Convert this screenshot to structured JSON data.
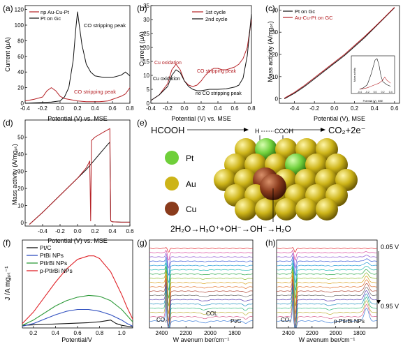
{
  "panels": {
    "a": {
      "letter": "(a)"
    },
    "b": {
      "letter": "(b)"
    },
    "c": {
      "letter": "(c)"
    },
    "d": {
      "letter": "(d)"
    },
    "e": {
      "letter": "(e)"
    },
    "f": {
      "letter": "(f)"
    },
    "g": {
      "letter": "(g)"
    },
    "h": {
      "letter": "(h)"
    }
  },
  "colors": {
    "red": "#b52025",
    "black": "#111111",
    "sphere_gold": "#cdb418",
    "pt_green": "#6fcf3a",
    "cu_brown": "#8a3b1c"
  },
  "scheme": {
    "reactant": "HCOOH",
    "product": "CO₂+2e⁻",
    "bond_h": "H",
    "bond_cooh": "COOH",
    "water_eq": "2H₂O→H₃O⁺+OH⁻→OH⁻→H₂O",
    "legend": [
      {
        "label": "Pt",
        "color": "#6fcf3a"
      },
      {
        "label": "Au",
        "color": "#cdb418"
      },
      {
        "label": "Cu",
        "color": "#8a3b1c"
      }
    ]
  },
  "chart_data": [
    {
      "panel": "a",
      "type": "line",
      "xlabel": "Potential (V) vs. MSE",
      "ylabel": "Current (µA)",
      "xlim": [
        -0.4,
        0.8
      ],
      "ylim": [
        0,
        125
      ],
      "xticks": [
        "-0.4",
        "-0.2",
        "0.0",
        "0.2",
        "0.4",
        "0.6",
        "0.8"
      ],
      "yticks": [
        "0",
        "20",
        "40",
        "60",
        "80",
        "100",
        "120"
      ],
      "legend_position": "top-left",
      "annotations": [
        "CO stripping peak",
        "CO stripping peak"
      ],
      "series": [
        {
          "name": "np Au-Cu-Pt",
          "color": "#b52025",
          "x": [
            -0.4,
            -0.3,
            -0.2,
            -0.15,
            -0.1,
            -0.05,
            0.0,
            0.05,
            0.1,
            0.15,
            0.2,
            0.25,
            0.3,
            0.35,
            0.4,
            0.45,
            0.5,
            0.55,
            0.6,
            0.65,
            0.7,
            0.75,
            0.8
          ],
          "y": [
            3,
            5,
            8,
            16,
            20,
            16,
            9,
            6,
            5,
            4,
            3,
            2.5,
            2,
            2,
            2,
            2,
            2.5,
            3,
            5,
            7,
            9,
            12,
            20
          ]
        },
        {
          "name": "Pt on Gc",
          "color": "#111111",
          "x": [
            -0.4,
            -0.3,
            -0.2,
            -0.1,
            0.0,
            0.05,
            0.1,
            0.15,
            0.18,
            0.2,
            0.22,
            0.25,
            0.3,
            0.35,
            0.4,
            0.5,
            0.6,
            0.7,
            0.75,
            0.8
          ],
          "y": [
            0,
            0.5,
            1,
            1.5,
            3,
            8,
            20,
            55,
            95,
            117,
            100,
            75,
            50,
            40,
            35,
            33,
            33,
            36,
            40,
            35
          ]
        }
      ]
    },
    {
      "panel": "b",
      "type": "line",
      "xlabel": "Potential (V) vs. MSE",
      "ylabel": "Current (µA)",
      "xlim": [
        -0.4,
        0.8
      ],
      "ylim": [
        0,
        35
      ],
      "xticks": [
        "-0.4",
        "-0.2",
        "0.0",
        "0.2",
        "0.4",
        "0.6",
        "0.8"
      ],
      "yticks": [
        "0",
        "5",
        "10",
        "15",
        "20",
        "25",
        "30",
        "35"
      ],
      "legend_position": "top-right",
      "annotations": [
        "Cu oxidation",
        "Cu oxidation",
        "CO stripping peak",
        "no CO stripping peak"
      ],
      "series": [
        {
          "name": "1st  cycle",
          "color": "#b52025",
          "x": [
            -0.4,
            -0.3,
            -0.2,
            -0.15,
            -0.1,
            -0.05,
            0.0,
            0.05,
            0.1,
            0.15,
            0.2,
            0.25,
            0.3,
            0.35,
            0.4,
            0.45,
            0.5,
            0.55,
            0.6,
            0.65,
            0.7,
            0.75,
            0.8
          ],
          "y": [
            1,
            3,
            7,
            12,
            14,
            12,
            8,
            6.5,
            6,
            6.5,
            8,
            10,
            11.5,
            12.5,
            12.5,
            12,
            12,
            12.5,
            13,
            14,
            16,
            20,
            30
          ]
        },
        {
          "name": "2nd cycle",
          "color": "#111111",
          "x": [
            -0.4,
            -0.3,
            -0.2,
            -0.15,
            -0.1,
            -0.05,
            0.0,
            0.05,
            0.1,
            0.15,
            0.2,
            0.3,
            0.4,
            0.5,
            0.6,
            0.65,
            0.7,
            0.75,
            0.8
          ],
          "y": [
            1,
            3,
            6,
            10,
            12,
            11,
            8,
            6,
            5,
            4.5,
            4.5,
            5,
            5,
            5.2,
            5.8,
            6.5,
            9,
            17,
            32
          ]
        }
      ]
    },
    {
      "panel": "c",
      "type": "line",
      "xlabel": "Potential (V), MSE",
      "ylabel": "Mass activity (A/mgₚₜ)",
      "xlim": [
        -0.55,
        0.65
      ],
      "ylim": [
        -2,
        42
      ],
      "xticks": [
        "-0.4",
        "-0.2",
        "0.0",
        "0.2",
        "0.4",
        "0.6"
      ],
      "yticks": [
        "0",
        "10",
        "20",
        "30",
        "40"
      ],
      "legend_position": "top-left",
      "series": [
        {
          "name": "Pt on Gc",
          "color": "#111111",
          "x": [
            -0.5,
            -0.4,
            -0.3,
            -0.2,
            -0.1,
            0.0,
            0.1,
            0.2,
            0.3,
            0.4,
            0.5,
            0.6
          ],
          "y": [
            0,
            2.5,
            5.5,
            9,
            12.5,
            16,
            19.5,
            23.5,
            27.5,
            32,
            36.5,
            41
          ]
        },
        {
          "name": "Au-Cu-Pt on GC",
          "color": "#b52025",
          "x": [
            -0.5,
            -0.4,
            -0.3,
            -0.2,
            -0.1,
            0.0,
            0.1,
            0.2,
            0.3,
            0.4,
            0.5,
            0.6
          ],
          "y": [
            0.3,
            2.9,
            6,
            9.5,
            13,
            16.5,
            20,
            24,
            28,
            32.3,
            36.7,
            41.2
          ]
        }
      ],
      "inset": {
        "xlabel": "Potential (V), MSE",
        "ylabel": "Mass activity",
        "xticks": [
          "-0.4",
          "-0.2",
          "0.0",
          "0.2",
          "0.4"
        ],
        "series": [
          {
            "color": "#111111",
            "x": [
              -0.4,
              -0.3,
              -0.2,
              -0.1,
              0.0,
              0.05,
              0.1,
              0.15,
              0.2,
              0.3,
              0.4
            ],
            "y": [
              0,
              0.05,
              0.15,
              0.5,
              0.95,
              1,
              0.8,
              0.45,
              0.25,
              0.15,
              0.1
            ]
          },
          {
            "color": "#b52025",
            "x": [
              -0.4,
              -0.3,
              -0.2,
              -0.1,
              0.0,
              0.1,
              0.2,
              0.25,
              0.3,
              0.4
            ],
            "y": [
              0,
              0.02,
              0.05,
              0.1,
              0.15,
              0.2,
              0.3,
              0.4,
              0.3,
              0.2
            ]
          }
        ]
      }
    },
    {
      "panel": "d",
      "type": "line",
      "xlabel": "Potential (V) vs. MSE",
      "ylabel": "Mass activity (A/mgₚₜ)",
      "xlim": [
        -0.6,
        0.6
      ],
      "ylim": [
        -2,
        60
      ],
      "xticks": [
        "-0.4",
        "-0.2",
        "0.0",
        "0.2",
        "0.4",
        "0.6"
      ],
      "yticks": [
        "0",
        "10",
        "20",
        "30",
        "40",
        "50"
      ],
      "series": [
        {
          "color": "#111111",
          "x": [
            -0.55,
            -0.4,
            -0.3,
            -0.2,
            -0.1,
            0.0,
            0.1,
            0.15,
            0.2,
            0.25,
            0.3,
            0.35,
            0.37,
            0.38,
            0.4,
            0.5,
            0.6
          ],
          "y": [
            -1,
            6,
            11,
            16,
            21,
            26,
            31,
            34,
            37,
            40,
            43,
            46,
            47,
            1,
            0.5,
            0.3,
            0.3
          ]
        },
        {
          "color": "#b52025",
          "x": [
            -0.55,
            -0.4,
            -0.3,
            -0.2,
            -0.1,
            0.0,
            0.1,
            0.14,
            0.15,
            0.16,
            0.2,
            0.3,
            0.37,
            0.38,
            0.4,
            0.5,
            0.6
          ],
          "y": [
            -1,
            6,
            11,
            16,
            21,
            26,
            32,
            36,
            1,
            48,
            50,
            53,
            55,
            1,
            0.5,
            0.3,
            0.3
          ]
        }
      ]
    },
    {
      "panel": "f",
      "type": "line",
      "xlabel": "Potential/V",
      "ylabel": "J /A mgₚₜ⁻¹",
      "xlim": [
        0.1,
        1.1
      ],
      "ylim": [
        0,
        10
      ],
      "xticks": [
        "0.2",
        "0.4",
        "0.6",
        "0.8",
        "1.0"
      ],
      "legend_position": "top-left",
      "series": [
        {
          "name": "Pt/C",
          "color": "#111111",
          "x": [
            0.1,
            0.2,
            0.3,
            0.4,
            0.5,
            0.6,
            0.7,
            0.8,
            0.85,
            0.9,
            0.95,
            1.0,
            1.05,
            1.1
          ],
          "y": [
            0.3,
            0.35,
            0.4,
            0.45,
            0.5,
            0.55,
            0.6,
            0.7,
            0.8,
            0.9,
            0.5,
            0.3,
            0.2,
            0.1
          ]
        },
        {
          "name": "PtBi NPs",
          "color": "#2f4fbf",
          "x": [
            0.1,
            0.2,
            0.3,
            0.4,
            0.5,
            0.6,
            0.7,
            0.8,
            0.9,
            1.0,
            1.05,
            1.1
          ],
          "y": [
            0.2,
            0.5,
            1.0,
            1.5,
            1.9,
            2.1,
            2.1,
            1.9,
            1.5,
            0.9,
            0.5,
            0.2
          ]
        },
        {
          "name": "PtIrBi NPs",
          "color": "#2e9a3a",
          "x": [
            0.1,
            0.2,
            0.3,
            0.4,
            0.5,
            0.6,
            0.7,
            0.8,
            0.9,
            1.0,
            1.05,
            1.1
          ],
          "y": [
            0.3,
            0.9,
            1.7,
            2.5,
            3.1,
            3.5,
            3.7,
            3.6,
            3.1,
            2.1,
            1.4,
            0.7
          ]
        },
        {
          "name": "p-PtIrBi NPs",
          "color": "#e0242a",
          "x": [
            0.1,
            0.2,
            0.3,
            0.4,
            0.5,
            0.6,
            0.7,
            0.75,
            0.8,
            0.9,
            1.0,
            1.05,
            1.1
          ],
          "y": [
            0.5,
            1.8,
            3.5,
            5.2,
            6.7,
            7.8,
            8.2,
            8.2,
            7.9,
            6.4,
            3.8,
            2.3,
            1.0
          ]
        }
      ]
    },
    {
      "panel": "g",
      "type": "line",
      "xlabel": "W avenum ber/cm⁻¹",
      "xlim": [
        2500,
        1650
      ],
      "xticks": [
        "2400",
        "2200",
        "2000",
        "1800"
      ],
      "annotations": [
        "CO₂",
        "COL",
        "Pt/C"
      ],
      "n_spectra": 18
    },
    {
      "panel": "h",
      "type": "line",
      "xlabel": "W avenum ber/cm⁻¹",
      "xlim": [
        2500,
        1650
      ],
      "xticks": [
        "2400",
        "2200",
        "2000",
        "1800"
      ],
      "annotations": [
        "CO₂",
        "p-PtIrBi NPs",
        "0.05 V",
        "0.95 V"
      ],
      "n_spectra": 18
    }
  ]
}
